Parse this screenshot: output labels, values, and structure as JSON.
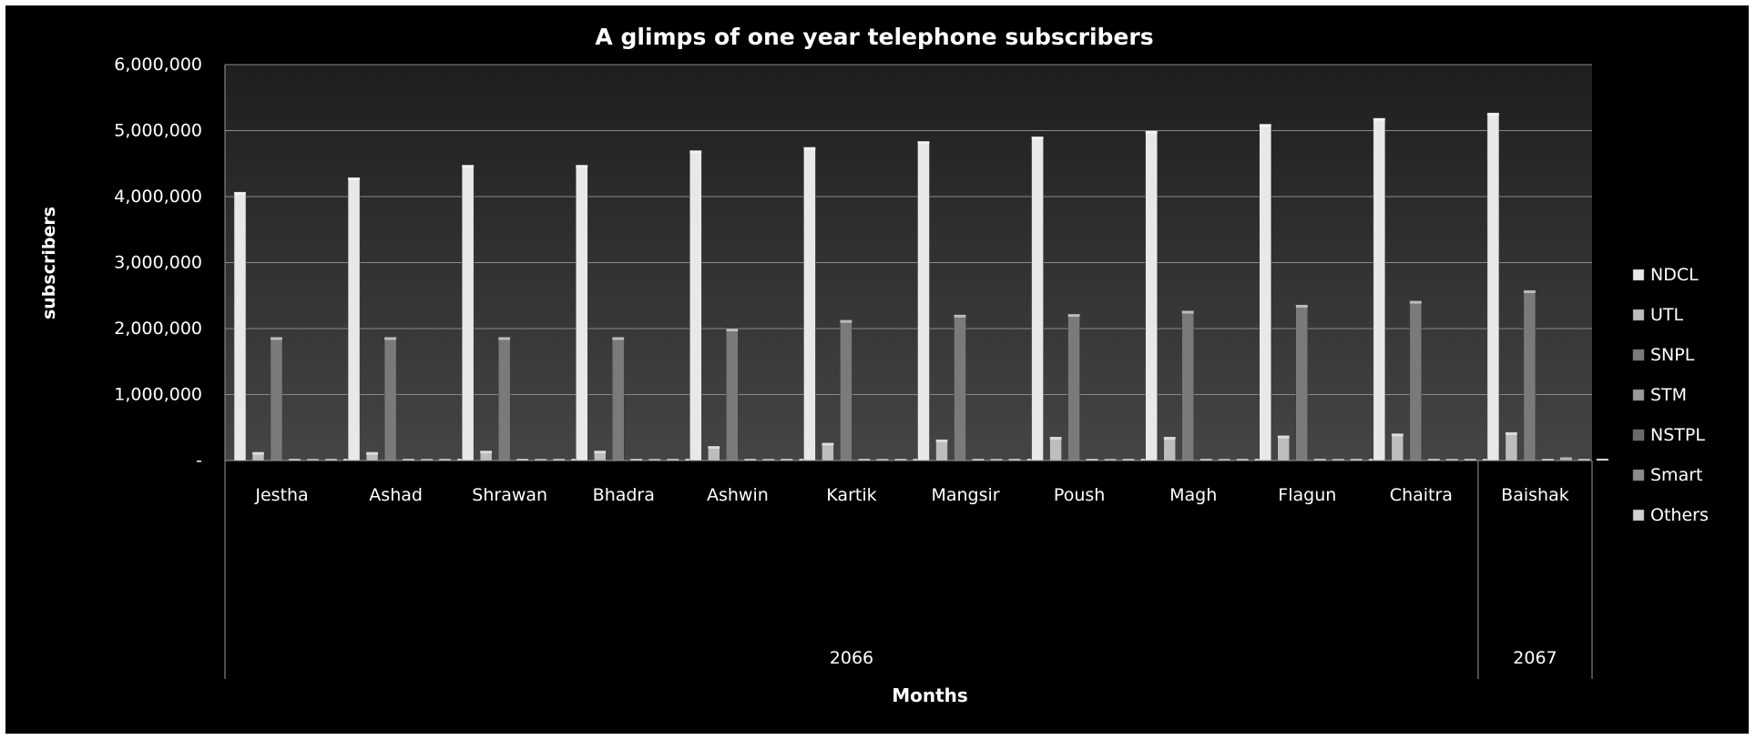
{
  "chart_data": {
    "type": "bar",
    "title": "A glimps of one year telephone subscribers",
    "xlabel": "Months",
    "ylabel": "subscribers",
    "ylim": [
      0,
      6000000
    ],
    "yticks": [
      {
        "value": 0,
        "label": "-"
      },
      {
        "value": 1000000,
        "label": "1,000,000"
      },
      {
        "value": 2000000,
        "label": "2,000,000"
      },
      {
        "value": 3000000,
        "label": "3,000,000"
      },
      {
        "value": 4000000,
        "label": "4,000,000"
      },
      {
        "value": 5000000,
        "label": "5,000,000"
      },
      {
        "value": 6000000,
        "label": "6,000,000"
      }
    ],
    "grid": true,
    "legend_position": "right",
    "categories": [
      "Jestha",
      "Ashad",
      "Shrawan",
      "Bhadra",
      "Ashwin",
      "Kartik",
      "Mangsir",
      "Poush",
      "Magh",
      "Flagun",
      "Chaitra",
      "Baishak"
    ],
    "category_groups": [
      {
        "label": "2066",
        "count": 11
      },
      {
        "label": "2067",
        "count": 1
      }
    ],
    "series": [
      {
        "name": "NDCL",
        "color": "#e8e8e8",
        "values": [
          4070000,
          4290000,
          4480000,
          4480000,
          4700000,
          4750000,
          4840000,
          4910000,
          5000000,
          5100000,
          5190000,
          5270000
        ]
      },
      {
        "name": "UTL",
        "color": "#bdbdbd",
        "values": [
          130000,
          130000,
          150000,
          150000,
          220000,
          270000,
          320000,
          360000,
          360000,
          380000,
          410000,
          430000
        ]
      },
      {
        "name": "SNPL",
        "color": "#7a7a7a",
        "values": [
          1870000,
          1870000,
          1870000,
          1870000,
          2000000,
          2130000,
          2210000,
          2220000,
          2270000,
          2360000,
          2420000,
          2580000
        ]
      },
      {
        "name": "STM",
        "color": "#9a9a9a",
        "values": [
          5000,
          5000,
          5000,
          5000,
          5000,
          5000,
          5000,
          5000,
          5000,
          5000,
          5000,
          5000
        ]
      },
      {
        "name": "NSTPL",
        "color": "#6a6a6a",
        "values": [
          0,
          0,
          0,
          0,
          0,
          0,
          0,
          0,
          0,
          0,
          0,
          50000
        ]
      },
      {
        "name": "Smart",
        "color": "#8c8c8c",
        "values": [
          0,
          0,
          0,
          0,
          0,
          0,
          0,
          0,
          0,
          0,
          0,
          0
        ]
      },
      {
        "name": "Others",
        "color": "#d0d0d0",
        "values": [
          5000,
          5000,
          5000,
          5000,
          5000,
          5000,
          5000,
          5000,
          5000,
          5000,
          5000,
          5000
        ]
      }
    ]
  }
}
